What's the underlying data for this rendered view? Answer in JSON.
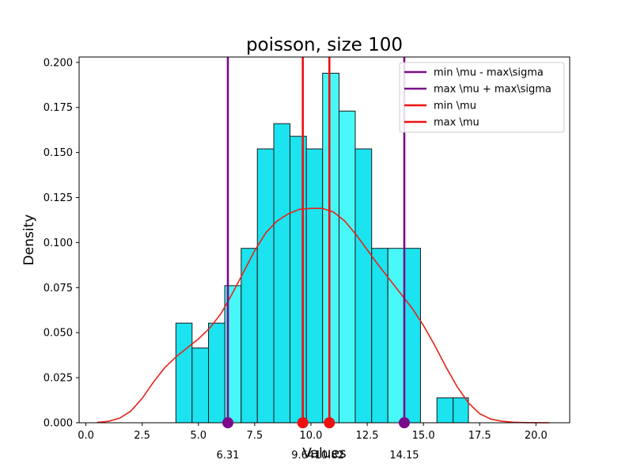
{
  "chart_data": {
    "type": "bar",
    "title": "poisson, size 100",
    "xlabel": "Values",
    "ylabel": "Density",
    "xlim": [
      -0.3,
      21.5
    ],
    "ylim": [
      0,
      0.203
    ],
    "xticks": [
      "0.0",
      "2.5",
      "5.0",
      "7.5",
      "10.0",
      "12.5",
      "15.0",
      "17.5",
      "20.0"
    ],
    "xtick_values": [
      0,
      2.5,
      5,
      7.5,
      10,
      12.5,
      15,
      17.5,
      20
    ],
    "yticks": [
      "0.000",
      "0.025",
      "0.050",
      "0.075",
      "0.100",
      "0.125",
      "0.150",
      "0.175",
      "0.200"
    ],
    "ytick_values": [
      0,
      0.025,
      0.05,
      0.075,
      0.1,
      0.125,
      0.15,
      0.175,
      0.2
    ],
    "histogram": {
      "bin_edges": [
        4.0,
        4.72,
        5.45,
        6.17,
        6.9,
        7.62,
        8.35,
        9.07,
        9.8,
        10.52,
        11.25,
        11.97,
        12.7,
        13.42,
        14.15,
        14.87,
        15.6,
        16.32,
        17.0
      ],
      "values": [
        0.0553,
        0.0415,
        0.0553,
        0.0761,
        0.0968,
        0.152,
        0.166,
        0.159,
        0.152,
        0.194,
        0.173,
        0.152,
        0.0968,
        0.0968,
        0.0968,
        0.0,
        0.0138,
        0.0138
      ],
      "highlight": [
        false,
        false,
        false,
        true,
        false,
        false,
        false,
        false,
        false,
        true,
        true,
        false,
        false,
        true,
        false,
        false,
        false,
        false
      ],
      "color": "#1be3ef",
      "highlight_color": "#48f7f7",
      "edge_color": "#1a1a1a"
    },
    "kde": {
      "name": "density",
      "color": "#e8231a",
      "x": [
        0.5,
        1.0,
        1.5,
        2.0,
        2.5,
        3.0,
        3.5,
        4.0,
        4.5,
        5.0,
        5.5,
        6.0,
        6.5,
        7.0,
        7.5,
        8.0,
        8.5,
        9.0,
        9.5,
        10.0,
        10.5,
        11.0,
        11.5,
        12.0,
        12.5,
        13.0,
        13.5,
        14.0,
        14.5,
        15.0,
        15.5,
        16.0,
        16.5,
        17.0,
        17.5,
        18.0,
        18.5,
        19.0,
        19.5,
        20.0,
        20.6
      ],
      "y": [
        0.0002,
        0.0008,
        0.0025,
        0.0065,
        0.0135,
        0.0225,
        0.0305,
        0.0365,
        0.0415,
        0.0465,
        0.0525,
        0.0605,
        0.0715,
        0.0835,
        0.0955,
        0.1055,
        0.112,
        0.116,
        0.1185,
        0.119,
        0.119,
        0.117,
        0.112,
        0.1045,
        0.096,
        0.0875,
        0.0795,
        0.0715,
        0.0635,
        0.054,
        0.043,
        0.031,
        0.02,
        0.011,
        0.005,
        0.002,
        0.0008,
        0.0003,
        0.0001,
        3e-05,
        0.0
      ]
    },
    "vlines": [
      {
        "x": 6.31,
        "label": "6.31",
        "color": "#7a0a8a",
        "legend": "min \\mu - max\\sigma"
      },
      {
        "x": 14.15,
        "label": "14.15",
        "color": "#7a0a8a",
        "legend": "max \\mu + max\\sigma"
      },
      {
        "x": 9.64,
        "label": "9.64",
        "color": "#ee1111",
        "legend": "min \\mu"
      },
      {
        "x": 10.82,
        "label": "10.82",
        "color": "#ee1111",
        "legend": "max \\mu"
      }
    ],
    "legend": {
      "position": "top-right",
      "entries": [
        {
          "label": "min \\mu - max\\sigma",
          "color": "#7a0a8a"
        },
        {
          "label": "max \\mu + max\\sigma",
          "color": "#7a0a8a"
        },
        {
          "label": "min \\mu",
          "color": "#ee1111"
        },
        {
          "label": "max \\mu",
          "color": "#ee1111"
        }
      ]
    },
    "grid": false
  }
}
